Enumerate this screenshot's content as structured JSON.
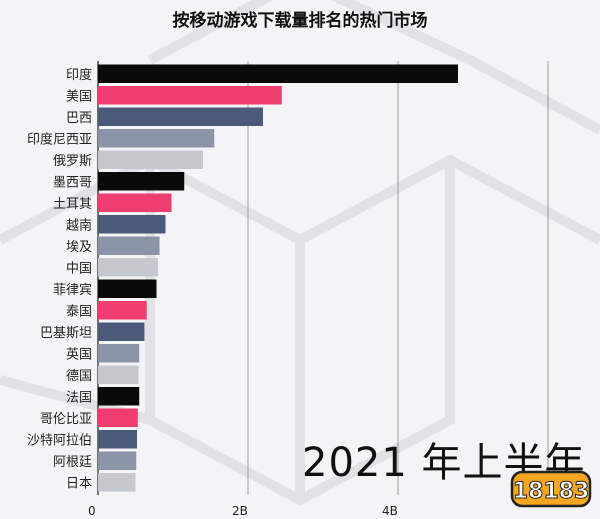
{
  "chart_data": {
    "type": "bar",
    "orientation": "horizontal",
    "title": "按移动游戏下载量排名的热门市场",
    "categories": [
      "印度",
      "美国",
      "巴西",
      "印度尼西亚",
      "俄罗斯",
      "墨西哥",
      "土耳其",
      "越南",
      "埃及",
      "中国",
      "菲律宾",
      "泰国",
      "巴基斯坦",
      "英国",
      "德国",
      "法国",
      "哥伦比亚",
      "沙特阿拉伯",
      "阿根廷",
      "日本"
    ],
    "values": [
      4.8,
      2.45,
      2.2,
      1.55,
      1.4,
      1.15,
      0.98,
      0.9,
      0.82,
      0.8,
      0.78,
      0.65,
      0.62,
      0.55,
      0.54,
      0.55,
      0.53,
      0.52,
      0.51,
      0.5
    ],
    "bar_colors": [
      "#0a0a0a",
      "#ee3d6e",
      "#4b5a78",
      "#8b95a7",
      "#c6c8d0",
      "#0a0a0a",
      "#ee3d6e",
      "#4b5a78",
      "#8b95a7",
      "#c6c8d0",
      "#0a0a0a",
      "#ee3d6e",
      "#4b5a78",
      "#8b95a7",
      "#c6c8d0",
      "#0a0a0a",
      "#ee3d6e",
      "#4b5a78",
      "#8b95a7",
      "#c6c8d0"
    ],
    "xticks": [
      {
        "value": 0,
        "label": "0"
      },
      {
        "value": 2,
        "label": "2B"
      },
      {
        "value": 4,
        "label": "4B"
      },
      {
        "value": 6,
        "label": ""
      }
    ],
    "xlim": [
      0,
      6
    ],
    "grid": true,
    "annotation": "2021 年上半年"
  },
  "watermark": "18183"
}
